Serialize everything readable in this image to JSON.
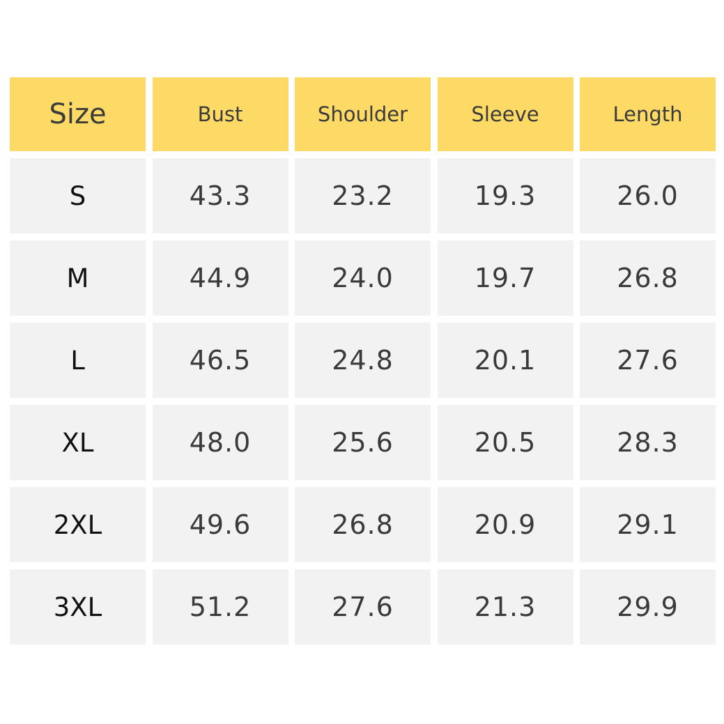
{
  "table": {
    "headers": [
      "Size",
      "Bust",
      "Shoulder",
      "Sleeve",
      "Length"
    ],
    "rows": [
      {
        "size": "S",
        "bust": "43.3",
        "shoulder": "23.2",
        "sleeve": "19.3",
        "length": "26.0"
      },
      {
        "size": "M",
        "bust": "44.9",
        "shoulder": "24.0",
        "sleeve": "19.7",
        "length": "26.8"
      },
      {
        "size": "L",
        "bust": "46.5",
        "shoulder": "24.8",
        "sleeve": "20.1",
        "length": "27.6"
      },
      {
        "size": "XL",
        "bust": "48.0",
        "shoulder": "25.6",
        "sleeve": "20.5",
        "length": "28.3"
      },
      {
        "size": "2XL",
        "bust": "49.6",
        "shoulder": "26.8",
        "sleeve": "20.9",
        "length": "29.1"
      },
      {
        "size": "3XL",
        "bust": "51.2",
        "shoulder": "27.6",
        "sleeve": "21.3",
        "length": "29.9"
      }
    ]
  },
  "colors": {
    "header_background": "#fdd966",
    "cell_background": "#f2f2f2",
    "text": "#3a3a3a"
  }
}
